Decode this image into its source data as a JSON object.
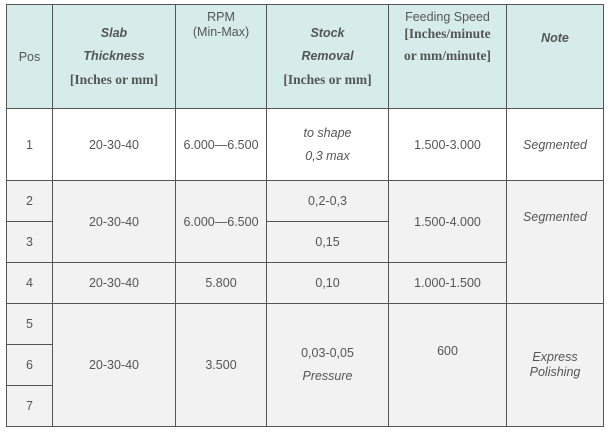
{
  "header": {
    "pos": "Pos",
    "slab_line1": "Slab",
    "slab_line2": "Thickness",
    "slab_line3": "[Inches or mm]",
    "rpm_line1": "RPM",
    "rpm_line2": "(Min-Max)",
    "stock_line1": "Stock",
    "stock_line2": "Removal",
    "stock_line3": "[Inches or mm]",
    "feed_line1": "Feeding Speed",
    "feed_line2": "[Inches/minute",
    "feed_line3": "or mm/minute]",
    "note": "Note"
  },
  "rows": {
    "r1": {
      "pos": "1",
      "thickness": "20-30-40",
      "rpm": "6.000—6.500",
      "stock_line1": "to shape",
      "stock_line2": "0,3 max",
      "feed": "1.500-3.000",
      "note": "Segmented"
    },
    "g2": {
      "pos_a": "2",
      "pos_b": "3",
      "thickness": "20-30-40",
      "rpm": "6.000—6.500",
      "stock_a": "0,2-0,3",
      "stock_b": "0,15",
      "feed": "1.500-4.000",
      "note": "Segmented"
    },
    "r4": {
      "pos": "4",
      "thickness": "20-30-40",
      "rpm": "5.800",
      "stock": "0,10",
      "feed": "1.000-1.500"
    },
    "g5": {
      "pos_a": "5",
      "pos_b": "6",
      "pos_c": "7",
      "thickness": "20-30-40",
      "rpm": "3.500",
      "stock_line1": "0,03-0,05",
      "stock_line2": "Pressure",
      "feed": "600",
      "note_line1": "Express",
      "note_line2": "Polishing"
    }
  }
}
